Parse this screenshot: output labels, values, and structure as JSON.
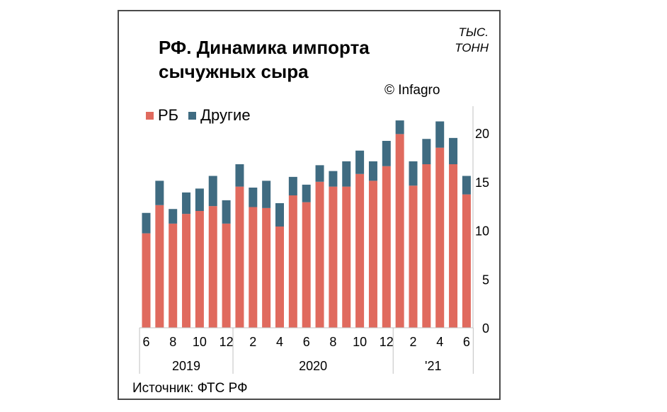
{
  "title_line1": "РФ. Динамика импорта",
  "title_line2": "сычужных сыра",
  "units_line1": "ТЫС.",
  "units_line2": "ТОНН",
  "copyright": "© Infagro",
  "source": "Источник: ФТС РФ",
  "colors": {
    "rb": "#e06a5e",
    "other": "#3f6b81",
    "axis": "#c0c0c0"
  },
  "chart_data": {
    "type": "bar",
    "stacked": true,
    "categories": [
      "2019-06",
      "2019-07",
      "2019-08",
      "2019-09",
      "2019-10",
      "2019-11",
      "2019-12",
      "2020-01",
      "2020-02",
      "2020-03",
      "2020-04",
      "2020-05",
      "2020-06",
      "2020-07",
      "2020-08",
      "2020-09",
      "2020-10",
      "2020-11",
      "2020-12",
      "2021-01",
      "2021-02",
      "2021-03",
      "2021-04",
      "2021-05",
      "2021-06"
    ],
    "series": [
      {
        "name": "РБ",
        "values": [
          9.7,
          12.6,
          10.7,
          11.7,
          12.0,
          12.5,
          10.7,
          14.5,
          12.4,
          12.3,
          10.4,
          13.6,
          12.9,
          15.0,
          14.5,
          14.5,
          15.8,
          15.1,
          16.6,
          19.9,
          14.6,
          16.8,
          18.5,
          16.8,
          13.7
        ]
      },
      {
        "name": "Другие",
        "values": [
          2.1,
          2.5,
          1.5,
          2.2,
          2.3,
          3.1,
          2.4,
          2.3,
          2.0,
          2.8,
          2.4,
          1.9,
          1.8,
          1.7,
          1.6,
          2.6,
          2.4,
          2.0,
          2.6,
          1.4,
          2.5,
          2.6,
          2.7,
          2.7,
          1.9
        ]
      }
    ],
    "x_tick_labels": [
      "6",
      "",
      "8",
      "",
      "10",
      "",
      "12",
      "",
      "2",
      "",
      "4",
      "",
      "6",
      "",
      "8",
      "",
      "10",
      "",
      "12",
      "",
      "2",
      "",
      "4",
      "",
      "6"
    ],
    "x_groups": [
      {
        "label": "2019",
        "start": 0,
        "end": 6
      },
      {
        "label": "2020",
        "start": 7,
        "end": 18
      },
      {
        "label": "'21",
        "start": 19,
        "end": 24
      }
    ],
    "ylim": [
      0,
      25
    ],
    "y_ticks": [
      0,
      5,
      10,
      15,
      20
    ],
    "y_axis_side": "right",
    "legend_position": "top-left",
    "grid": false
  }
}
